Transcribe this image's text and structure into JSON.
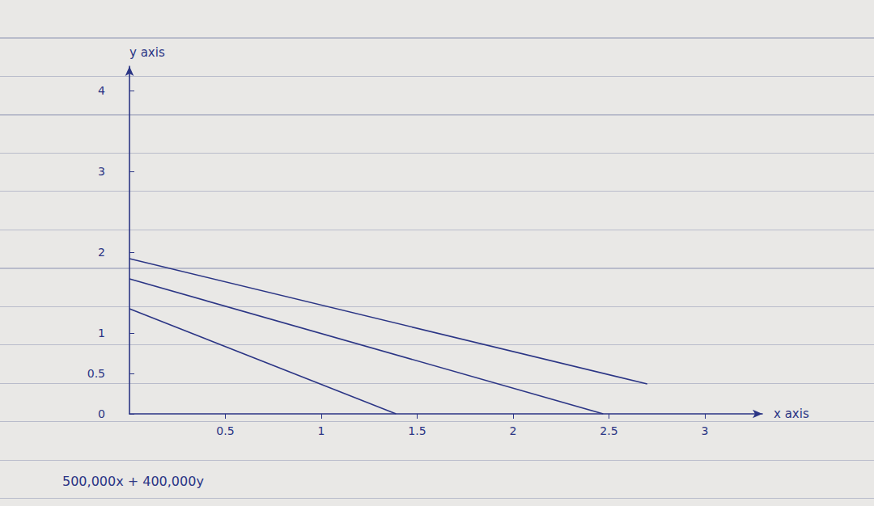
{
  "chart_data": {
    "type": "line",
    "x_label": "x axis",
    "y_label": "y axis",
    "annotation": "500,000x + 400,000y",
    "xlim": [
      0,
      3.3
    ],
    "xticks": [
      0.5,
      1,
      1.5,
      2,
      2.5,
      3
    ],
    "ylim": [
      0,
      4.3
    ],
    "yticks": [
      0,
      0.5,
      1,
      2,
      3,
      4
    ],
    "grid": false,
    "series": [
      {
        "color": "#2b3585",
        "x": [
          0,
          1.39
        ],
        "values": [
          1.3,
          0
        ]
      },
      {
        "color": "#2b3585",
        "x": [
          0,
          2.47
        ],
        "values": [
          1.67,
          0
        ]
      },
      {
        "color": "#2b3585",
        "x": [
          0,
          2.7
        ],
        "values": [
          1.92,
          0.37
        ]
      }
    ]
  }
}
